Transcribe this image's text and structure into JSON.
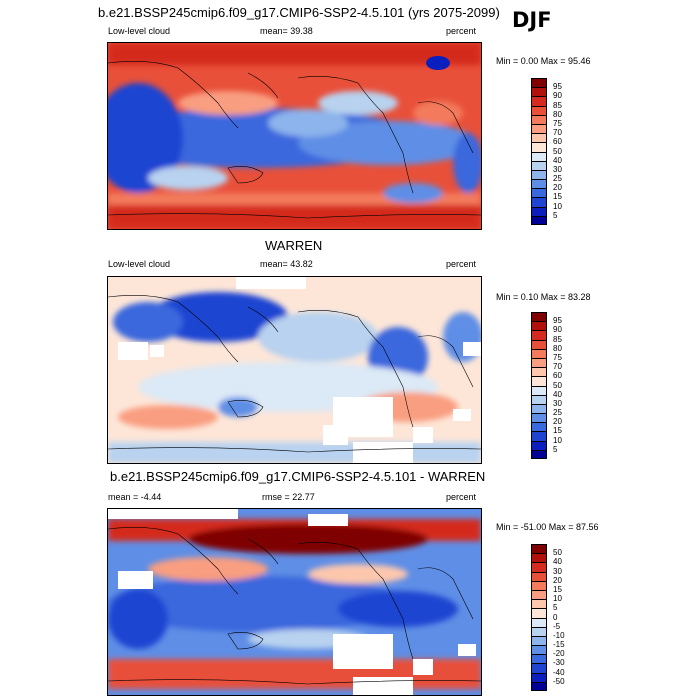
{
  "figure": {
    "season": "DJF",
    "panel1": {
      "title": "b.e21.BSSP245cmip6.f09_g17.CMIP6-SSP2-4.5.101 (yrs 2075-2099)",
      "left": "Low-level cloud",
      "mid": "mean=  39.38",
      "right": "percent",
      "minmax": "Min =   0.00 Max =  95.46"
    },
    "panel2": {
      "title": "WARREN",
      "left": "Low-level cloud",
      "mid": "mean=  43.82",
      "right": "percent",
      "minmax": "Min =   0.10 Max =  83.28"
    },
    "panel3": {
      "title": "b.e21.BSSP245cmip6.f09_g17.CMIP6-SSP2-4.5.101 - WARREN",
      "left": "mean =  -4.44",
      "mid": "rmse =  22.77",
      "right": "percent",
      "minmax": "Min = -51.00 Max =  87.56"
    }
  },
  "colorbars": {
    "abs_labels": [
      "95",
      "90",
      "85",
      "80",
      "75",
      "70",
      "60",
      "50",
      "40",
      "30",
      "25",
      "20",
      "15",
      "10",
      "5"
    ],
    "abs_colors": [
      "#7f0000",
      "#b2110b",
      "#d42a1f",
      "#e8503a",
      "#f37a5c",
      "#f99e80",
      "#fcc7ad",
      "#fde6d8",
      "#dce9f6",
      "#b8d2ef",
      "#8db4ec",
      "#5f8ee6",
      "#3a68dd",
      "#1f44d2",
      "#0b1fbe",
      "#000096"
    ],
    "diff_labels": [
      "50",
      "40",
      "30",
      "20",
      "15",
      "10",
      "5",
      "0",
      "-5",
      "-10",
      "-15",
      "-20",
      "-30",
      "-40",
      "-50"
    ],
    "diff_colors": [
      "#7f0000",
      "#b2110b",
      "#d42a1f",
      "#e8503a",
      "#f37a5c",
      "#f99e80",
      "#fcc7ad",
      "#fde6d8",
      "#dce9f6",
      "#b8d2ef",
      "#8db4ec",
      "#5f8ee6",
      "#3a68dd",
      "#1f44d2",
      "#0b1fbe",
      "#000096"
    ]
  }
}
